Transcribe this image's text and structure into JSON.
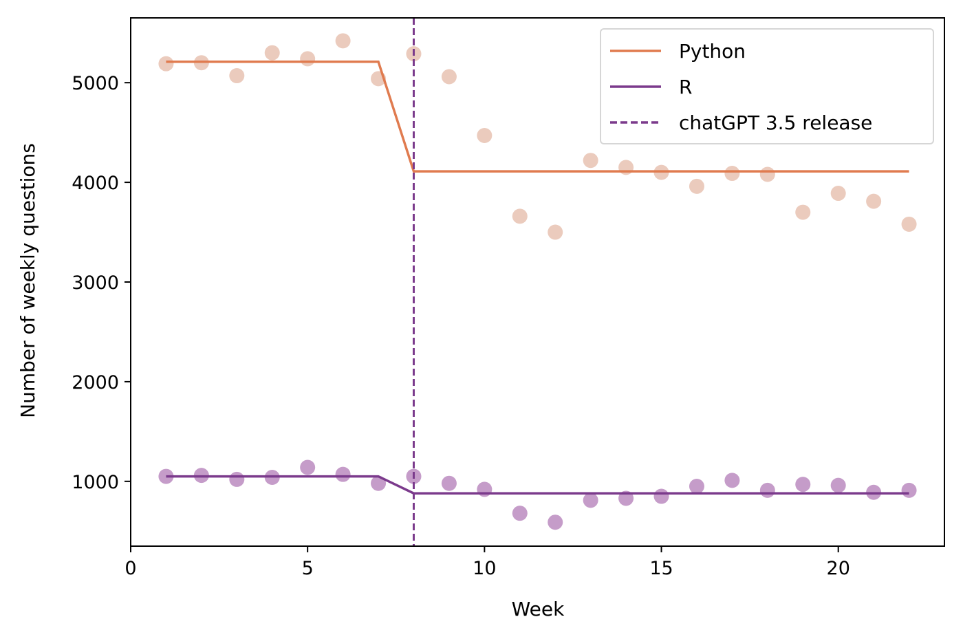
{
  "chart_data": {
    "type": "line",
    "title": "",
    "xlabel": "Week",
    "ylabel": "Number of weekly questions",
    "xlim": [
      0,
      23
    ],
    "ylim": [
      350,
      5650
    ],
    "xticks": [
      0,
      5,
      10,
      15,
      20
    ],
    "yticks": [
      1000,
      2000,
      3000,
      4000,
      5000
    ],
    "grid": false,
    "legend_position": "top-right",
    "series": [
      {
        "name": "Python",
        "color": "#e07b4f",
        "marker_color": "#ebcbbd",
        "points": [
          [
            1,
            5190
          ],
          [
            2,
            5200
          ],
          [
            3,
            5070
          ],
          [
            4,
            5300
          ],
          [
            5,
            5240
          ],
          [
            6,
            5420
          ],
          [
            7,
            5040
          ],
          [
            8,
            5290
          ],
          [
            9,
            5060
          ],
          [
            10,
            4470
          ],
          [
            11,
            3660
          ],
          [
            12,
            3500
          ],
          [
            13,
            4220
          ],
          [
            14,
            4150
          ],
          [
            15,
            4100
          ],
          [
            16,
            3960
          ],
          [
            17,
            4090
          ],
          [
            18,
            4080
          ],
          [
            19,
            3700
          ],
          [
            20,
            3890
          ],
          [
            21,
            3810
          ],
          [
            22,
            3580
          ]
        ],
        "fit": [
          [
            1,
            5210
          ],
          [
            7,
            5210
          ],
          [
            8,
            4110
          ],
          [
            22,
            4110
          ]
        ]
      },
      {
        "name": "R",
        "color": "#7b3a8c",
        "marker_color": "#c59cc9",
        "points": [
          [
            1,
            1050
          ],
          [
            2,
            1060
          ],
          [
            3,
            1020
          ],
          [
            4,
            1040
          ],
          [
            5,
            1140
          ],
          [
            6,
            1070
          ],
          [
            7,
            980
          ],
          [
            8,
            1050
          ],
          [
            9,
            980
          ],
          [
            10,
            920
          ],
          [
            11,
            680
          ],
          [
            12,
            590
          ],
          [
            13,
            810
          ],
          [
            14,
            830
          ],
          [
            15,
            850
          ],
          [
            16,
            950
          ],
          [
            17,
            1010
          ],
          [
            18,
            910
          ],
          [
            19,
            970
          ],
          [
            20,
            960
          ],
          [
            21,
            890
          ],
          [
            22,
            910
          ]
        ],
        "fit": [
          [
            1,
            1050
          ],
          [
            7,
            1050
          ],
          [
            8,
            880
          ],
          [
            22,
            880
          ]
        ]
      }
    ],
    "vline": {
      "name": "chatGPT 3.5 release",
      "x": 8,
      "color": "#7b3a8c"
    }
  }
}
